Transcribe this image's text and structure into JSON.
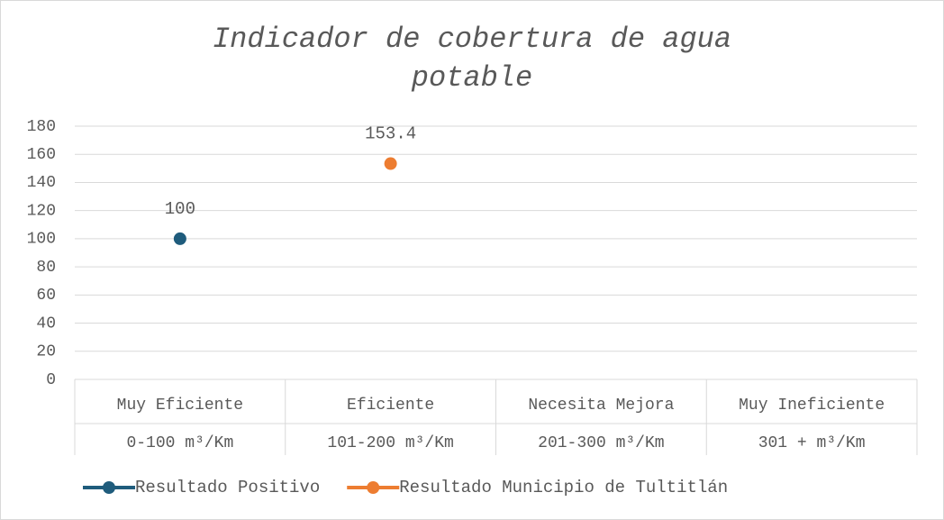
{
  "chart_data": {
    "type": "line",
    "title": "Indicador de cobertura de agua potable",
    "categories": [
      [
        "Muy Eficiente",
        "0-100 m³/Km"
      ],
      [
        "Eficiente",
        "101-200 m³/Km"
      ],
      [
        "Necesita Mejora",
        "201-300 m³/Km"
      ],
      [
        "Muy Ineficiente",
        "301 + m³/Km"
      ]
    ],
    "series": [
      {
        "name": "Resultado Positivo",
        "color": "#1f5c7c",
        "values": [
          100,
          null,
          null,
          null
        ]
      },
      {
        "name": "Resultado Municipio de Tultitlán",
        "color": "#ed7d31",
        "values": [
          null,
          153.4,
          null,
          null
        ]
      }
    ],
    "ylim": [
      0,
      180
    ],
    "yticks": [
      0,
      20,
      40,
      60,
      80,
      100,
      120,
      140,
      160,
      180
    ],
    "grid": true,
    "legend": "bottom",
    "data_labels": true
  }
}
